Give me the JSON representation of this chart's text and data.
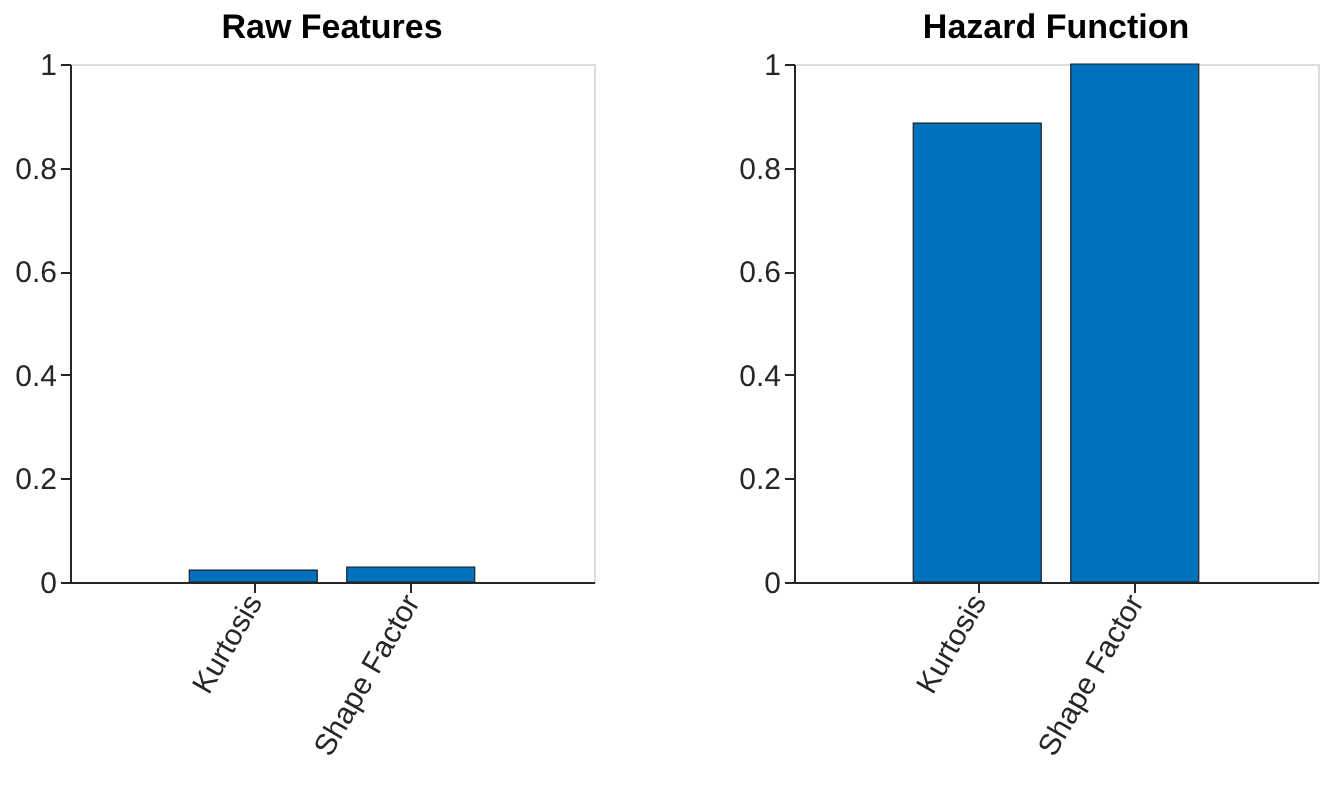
{
  "chart_data": [
    {
      "type": "bar",
      "title": "Raw Features",
      "categories": [
        "Kurtosis",
        "Shape Factor"
      ],
      "values": [
        0.023,
        0.029
      ],
      "color": "#0072bd",
      "ylim": [
        0,
        1
      ],
      "yticks": [
        0,
        0.2,
        0.4,
        0.6,
        0.8,
        1
      ],
      "grid": false
    },
    {
      "type": "bar",
      "title": "Hazard Function",
      "categories": [
        "Kurtosis",
        "Shape Factor"
      ],
      "values": [
        0.886,
        1.0
      ],
      "color": "#0072bd",
      "ylim": [
        0,
        1
      ],
      "yticks": [
        0,
        0.2,
        0.4,
        0.6,
        0.8,
        1
      ],
      "grid": false
    }
  ]
}
